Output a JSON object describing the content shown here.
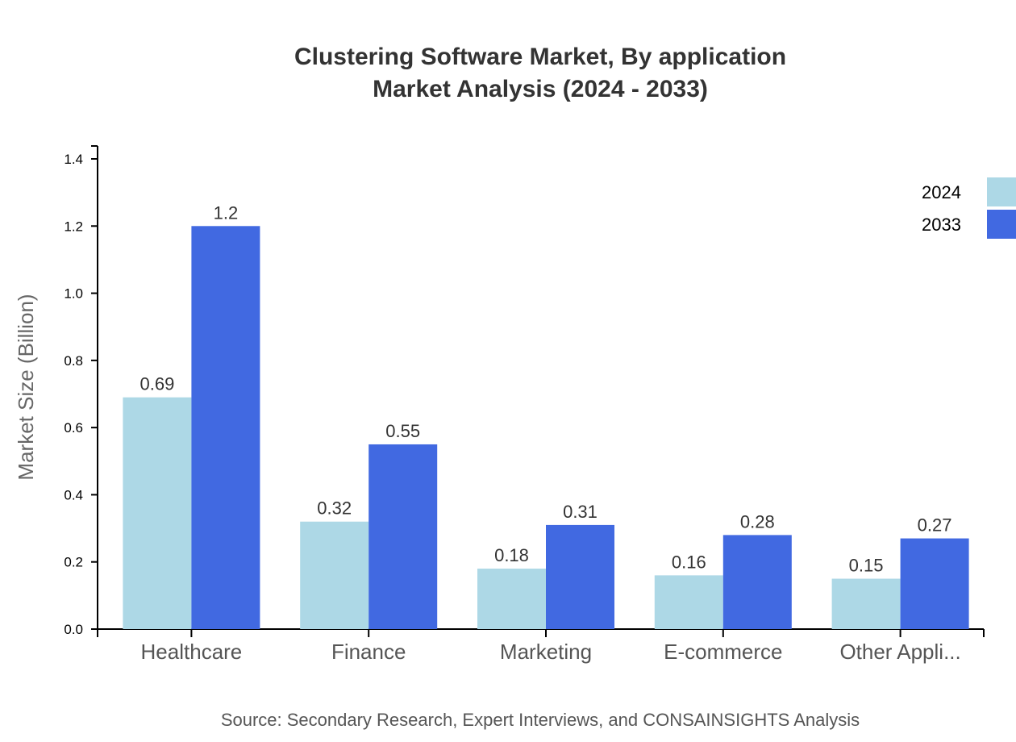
{
  "chart_data": {
    "type": "bar",
    "title": "Clustering Software Market, By application",
    "subtitle": "Market Analysis (2024 - 2033)",
    "xlabel": "",
    "ylabel": "Market Size (Billion)",
    "ylim": [
      0,
      1.44
    ],
    "yticks": [
      "0.0",
      "0.2",
      "0.4",
      "0.6",
      "0.8",
      "1.0",
      "1.2",
      "1.4"
    ],
    "categories": [
      "Healthcare",
      "Finance",
      "Marketing",
      "E-commerce",
      "Other Appli..."
    ],
    "series": [
      {
        "name": "2024",
        "color": "#add8e6",
        "values": [
          0.69,
          0.32,
          0.18,
          0.16,
          0.15
        ],
        "labels": [
          "0.69",
          "0.32",
          "0.18",
          "0.16",
          "0.15"
        ]
      },
      {
        "name": "2033",
        "color": "#4169e1",
        "values": [
          1.2,
          0.55,
          0.31,
          0.28,
          0.27
        ],
        "labels": [
          "1.2",
          "0.55",
          "0.31",
          "0.28",
          "0.27"
        ]
      }
    ],
    "grid": false,
    "legend": "top-right",
    "source": "Source: Secondary Research, Expert Interviews, and CONSAINSIGHTS Analysis"
  }
}
